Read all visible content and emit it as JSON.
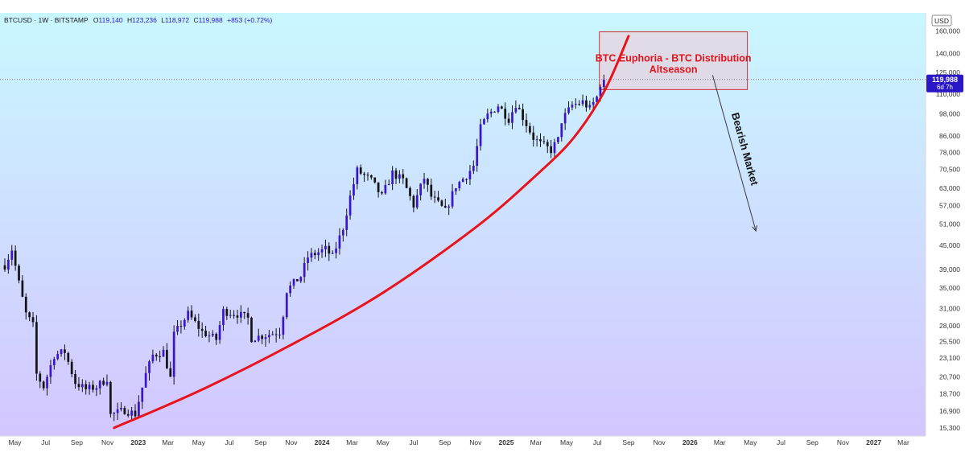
{
  "header": {
    "symbol": "BTCUSD · 1W · BITSTAMP",
    "open_label": "O",
    "open": "119,140",
    "high_label": "H",
    "high": "123,236",
    "low_label": "L",
    "low": "118,972",
    "close_label": "C",
    "close": "119,988",
    "change": "+853 (+0.72%)"
  },
  "price_tag": {
    "price": "119,988",
    "countdown": "6d 7h"
  },
  "currency_button": "USD",
  "annotations": {
    "box_line1": "BTC Euphoria - BTC Distribution",
    "box_line2": "Altseason",
    "arrow_label": "Bearish Market"
  },
  "colors": {
    "background_top": "#c9f7ff",
    "background_bottom": "#d3c6ff",
    "candle": "#141414",
    "candle_up_body": "#3a16c8",
    "curve": "#e8141c",
    "annotation_box_fill": "#f3c6d2",
    "annotation_box_stroke": "#d2323c",
    "annotation_text": "#e0141c",
    "price_tag": "#2a17c7"
  },
  "chart_data": {
    "type": "candlestick",
    "title": "",
    "y_scale": "log",
    "y_ticks": [
      15300,
      16900,
      18700,
      20700,
      23100,
      25500,
      28000,
      31000,
      35000,
      39000,
      45000,
      51000,
      57000,
      63000,
      70500,
      78000,
      86000,
      98000,
      110000,
      125000,
      140000,
      160000
    ],
    "y_tick_labels": [
      "15,300",
      "16,900",
      "18,700",
      "20,700",
      "23,100",
      "25,500",
      "28,000",
      "31,000",
      "35,000",
      "39,000",
      "45,000",
      "51,000",
      "57,000",
      "63,000",
      "70,500",
      "78,000",
      "86,000",
      "98,000",
      "110,000",
      "125,000",
      "140,000",
      "160,000"
    ],
    "x_range": [
      "2022-04-11",
      "2027-03-29"
    ],
    "x_ticks": [
      {
        "date": "2022-05-01",
        "label": "May"
      },
      {
        "date": "2022-07-01",
        "label": "Jul"
      },
      {
        "date": "2022-09-01",
        "label": "Sep"
      },
      {
        "date": "2022-11-01",
        "label": "Nov"
      },
      {
        "date": "2023-01-01",
        "label": "2023"
      },
      {
        "date": "2023-03-01",
        "label": "Mar"
      },
      {
        "date": "2023-05-01",
        "label": "May"
      },
      {
        "date": "2023-07-01",
        "label": "Jul"
      },
      {
        "date": "2023-09-01",
        "label": "Sep"
      },
      {
        "date": "2023-11-01",
        "label": "Nov"
      },
      {
        "date": "2024-01-01",
        "label": "2024"
      },
      {
        "date": "2024-03-01",
        "label": "Mar"
      },
      {
        "date": "2024-05-01",
        "label": "May"
      },
      {
        "date": "2024-07-01",
        "label": "Jul"
      },
      {
        "date": "2024-09-01",
        "label": "Sep"
      },
      {
        "date": "2024-11-01",
        "label": "Nov"
      },
      {
        "date": "2025-01-01",
        "label": "2025"
      },
      {
        "date": "2025-03-01",
        "label": "Mar"
      },
      {
        "date": "2025-05-01",
        "label": "May"
      },
      {
        "date": "2025-07-01",
        "label": "Jul"
      },
      {
        "date": "2025-09-01",
        "label": "Sep"
      },
      {
        "date": "2025-11-01",
        "label": "Nov"
      },
      {
        "date": "2026-01-01",
        "label": "2026"
      },
      {
        "date": "2026-03-01",
        "label": "Mar"
      },
      {
        "date": "2026-05-01",
        "label": "May"
      },
      {
        "date": "2026-07-01",
        "label": "Jul"
      },
      {
        "date": "2026-09-01",
        "label": "Sep"
      },
      {
        "date": "2026-11-01",
        "label": "Nov"
      },
      {
        "date": "2027-01-01",
        "label": "2027"
      },
      {
        "date": "2027-03-01",
        "label": "Mar"
      }
    ],
    "last_price": 119988,
    "close_path": [
      [
        "2022-04-11",
        40000
      ],
      [
        "2022-04-25",
        44000
      ],
      [
        "2022-05-09",
        36000
      ],
      [
        "2022-05-23",
        30000
      ],
      [
        "2022-06-06",
        28000
      ],
      [
        "2022-06-13",
        21000
      ],
      [
        "2022-06-27",
        19500
      ],
      [
        "2022-07-18",
        23500
      ],
      [
        "2022-08-08",
        24000
      ],
      [
        "2022-08-29",
        20000
      ],
      [
        "2022-09-19",
        19200
      ],
      [
        "2022-10-10",
        19500
      ],
      [
        "2022-10-31",
        20500
      ],
      [
        "2022-11-07",
        16500
      ],
      [
        "2022-12-05",
        17000
      ],
      [
        "2022-12-26",
        16600
      ],
      [
        "2023-01-16",
        21000
      ],
      [
        "2023-01-30",
        23500
      ],
      [
        "2023-02-20",
        24000
      ],
      [
        "2023-03-06",
        20500
      ],
      [
        "2023-03-13",
        26500
      ],
      [
        "2023-04-10",
        30000
      ],
      [
        "2023-05-08",
        27000
      ],
      [
        "2023-06-05",
        25800
      ],
      [
        "2023-06-19",
        30500
      ],
      [
        "2023-07-17",
        30000
      ],
      [
        "2023-08-07",
        29200
      ],
      [
        "2023-08-14",
        26000
      ],
      [
        "2023-09-18",
        26600
      ],
      [
        "2023-10-09",
        27000
      ],
      [
        "2023-10-16",
        30000
      ],
      [
        "2023-10-23",
        34500
      ],
      [
        "2023-11-20",
        37500
      ],
      [
        "2023-12-04",
        42000
      ],
      [
        "2024-01-08",
        44000
      ],
      [
        "2024-01-22",
        42000
      ],
      [
        "2024-02-12",
        50000
      ],
      [
        "2024-02-26",
        60000
      ],
      [
        "2024-03-11",
        70000
      ],
      [
        "2024-04-08",
        66000
      ],
      [
        "2024-04-29",
        60000
      ],
      [
        "2024-05-20",
        69000
      ],
      [
        "2024-06-10",
        66000
      ],
      [
        "2024-07-01",
        57000
      ],
      [
        "2024-07-22",
        67000
      ],
      [
        "2024-08-05",
        60000
      ],
      [
        "2024-09-02",
        55000
      ],
      [
        "2024-09-23",
        64000
      ],
      [
        "2024-10-14",
        68000
      ],
      [
        "2024-10-28",
        72000
      ],
      [
        "2024-11-11",
        90000
      ],
      [
        "2024-11-25",
        97000
      ],
      [
        "2024-12-16",
        103000
      ],
      [
        "2025-01-06",
        95000
      ],
      [
        "2025-01-20",
        104000
      ],
      [
        "2025-02-03",
        96000
      ],
      [
        "2025-02-24",
        85000
      ],
      [
        "2025-03-10",
        82000
      ],
      [
        "2025-03-31",
        79000
      ],
      [
        "2025-04-14",
        84000
      ],
      [
        "2025-04-21",
        94000
      ],
      [
        "2025-05-12",
        103000
      ],
      [
        "2025-06-02",
        105000
      ],
      [
        "2025-06-16",
        101000
      ],
      [
        "2025-06-30",
        108000
      ],
      [
        "2025-07-07",
        117000
      ],
      [
        "2025-07-14",
        119988
      ]
    ],
    "curve": [
      [
        "2022-11-14",
        15300
      ],
      [
        "2023-05-01",
        19000
      ],
      [
        "2023-11-01",
        25000
      ],
      [
        "2024-05-01",
        34000
      ],
      [
        "2024-11-01",
        50000
      ],
      [
        "2025-03-01",
        68000
      ],
      [
        "2025-05-15",
        85000
      ],
      [
        "2025-07-15",
        112000
      ],
      [
        "2025-09-01",
        155000
      ]
    ],
    "box": {
      "x0": "2025-07-05",
      "x1": "2026-04-25",
      "y0": 113000,
      "y1": 159000
    },
    "arrow": {
      "x0": "2026-02-15",
      "x1": "2026-05-12",
      "y0": 123000,
      "y1": 49000
    }
  }
}
